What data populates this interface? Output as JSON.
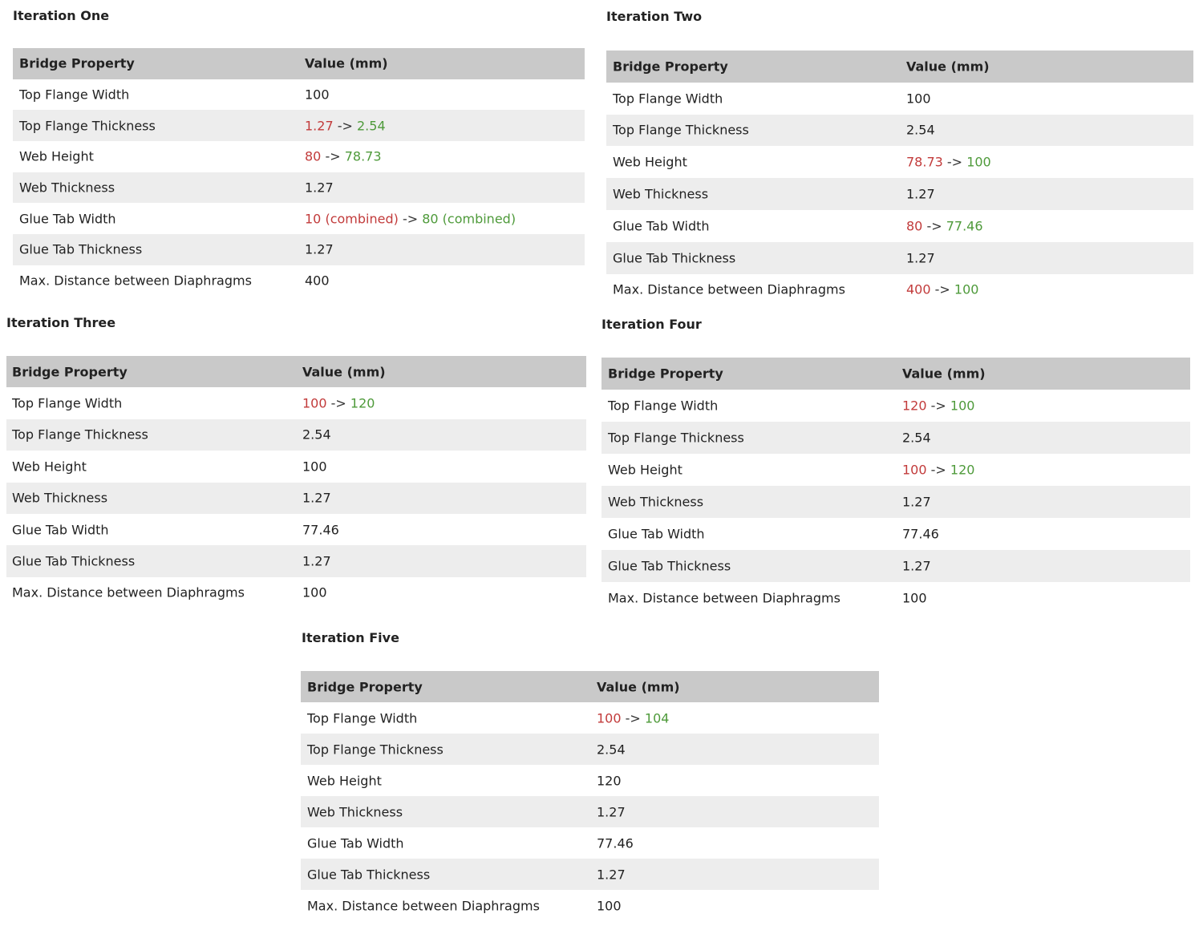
{
  "tables": [
    {
      "title": "Iteration One",
      "headers": [
        "Bridge Property",
        "Value (mm)"
      ],
      "rows": [
        [
          "Top Flange Width",
          "100"
        ],
        [
          "Top Flange Thickness",
          {
            "old": "1.27",
            "arrow": "->",
            "new": "2.54"
          }
        ],
        [
          "Web Height",
          {
            "old": "80",
            "arrow": "->",
            "new": "78.73"
          }
        ],
        [
          "Web Thickness",
          "1.27"
        ],
        [
          "Glue Tab Width",
          {
            "old": "10 (combined)",
            "arrow": "->",
            "new": "80 (combined)"
          }
        ],
        [
          "Glue Tab Thickness",
          "1.27"
        ],
        [
          "Max. Distance between Diaphragms",
          "400"
        ]
      ]
    },
    {
      "title": "Iteration Two",
      "headers": [
        "Bridge Property",
        "Value (mm)"
      ],
      "rows": [
        [
          "Top Flange Width",
          "100"
        ],
        [
          "Top Flange Thickness",
          "2.54"
        ],
        [
          "Web Height",
          {
            "old": "78.73",
            "arrow": "->",
            "new": "100"
          }
        ],
        [
          "Web Thickness",
          "1.27"
        ],
        [
          "Glue Tab Width",
          {
            "old": "80",
            "arrow": "->",
            "new": "77.46"
          }
        ],
        [
          "Glue Tab Thickness",
          "1.27"
        ],
        [
          "Max. Distance between Diaphragms",
          {
            "old": "400",
            "arrow": "->",
            "new": "100"
          }
        ]
      ]
    },
    {
      "title": "Iteration Three",
      "headers": [
        "Bridge Property",
        "Value (mm)"
      ],
      "rows": [
        [
          "Top Flange Width",
          {
            "old": "100",
            "arrow": "->",
            "new": "120"
          }
        ],
        [
          "Top Flange Thickness",
          "2.54"
        ],
        [
          "Web Height",
          "100"
        ],
        [
          "Web Thickness",
          "1.27"
        ],
        [
          "Glue Tab Width",
          "77.46"
        ],
        [
          "Glue Tab Thickness",
          "1.27"
        ],
        [
          "Max. Distance between Diaphragms",
          "100"
        ]
      ]
    },
    {
      "title": "Iteration Four",
      "headers": [
        "Bridge Property",
        "Value (mm)"
      ],
      "rows": [
        [
          "Top Flange Width",
          {
            "old": "120",
            "arrow": "->",
            "new": "100"
          }
        ],
        [
          "Top Flange Thickness",
          "2.54"
        ],
        [
          "Web Height",
          {
            "old": "100",
            "arrow": "->",
            "new": "120"
          }
        ],
        [
          "Web Thickness",
          "1.27"
        ],
        [
          "Glue Tab Width",
          "77.46"
        ],
        [
          "Glue Tab Thickness",
          "1.27"
        ],
        [
          "Max. Distance between Diaphragms",
          "100"
        ]
      ]
    },
    {
      "title": "Iteration Five",
      "headers": [
        "Bridge Property",
        "Value (mm)"
      ],
      "rows": [
        [
          "Top Flange Width",
          {
            "old": "100",
            "arrow": "->",
            "new": "104"
          }
        ],
        [
          "Top Flange Thickness",
          "2.54"
        ],
        [
          "Web Height",
          "120"
        ],
        [
          "Web Thickness",
          "1.27"
        ],
        [
          "Glue Tab Width",
          "77.46"
        ],
        [
          "Glue Tab Thickness",
          "1.27"
        ],
        [
          "Max. Distance between Diaphragms",
          "100"
        ]
      ]
    }
  ]
}
